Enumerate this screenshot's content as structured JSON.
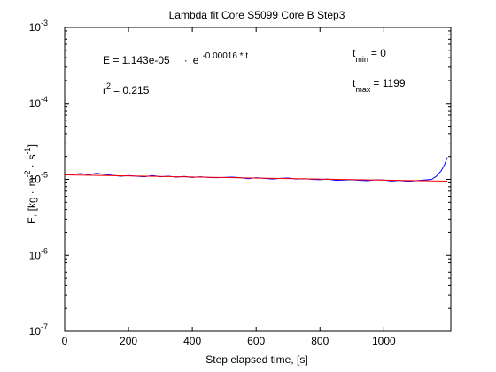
{
  "chart_data": {
    "type": "line",
    "title": "Lambda fit  Core S5099 Core B  Step3",
    "xlabel": "Step elapsed time, [s]",
    "ylabel": {
      "main": "E, [kg",
      "dot1": "·",
      "m": "m",
      "exp1": "-2",
      "dot2": "·",
      "s": "s",
      "exp2": "-1",
      "close": "]"
    },
    "x_scale": "linear",
    "y_scale": "log",
    "xlim": [
      0,
      1210
    ],
    "ylim": [
      1e-07,
      0.001
    ],
    "x_ticks": [
      {
        "value": 0,
        "label": "0"
      },
      {
        "value": 200,
        "label": "200"
      },
      {
        "value": 400,
        "label": "400"
      },
      {
        "value": 600,
        "label": "600"
      },
      {
        "value": 800,
        "label": "800"
      },
      {
        "value": 1000,
        "label": "1000"
      }
    ],
    "y_ticks": [
      {
        "value": 1e-07,
        "base": "10",
        "exp": "-7"
      },
      {
        "value": 1e-06,
        "base": "10",
        "exp": "-6"
      },
      {
        "value": 1e-05,
        "base": "10",
        "exp": "-5"
      },
      {
        "value": 0.0001,
        "base": "10",
        "exp": "-4"
      },
      {
        "value": 0.001,
        "base": "10",
        "exp": "-3"
      }
    ],
    "grid": false,
    "legend": "none",
    "annotations": {
      "equation_lhs": "E = 1.143e-05",
      "equation_dot": "·",
      "equation_e": "e",
      "equation_exp": "-0.00016 * t",
      "r2_label": "r",
      "r2_exp": "2",
      "r2_value": "= 0.215",
      "tmin_t": "t",
      "tmin_sub": "min",
      "tmin_value": "= 0",
      "tmax_t": "t",
      "tmax_sub": "max",
      "tmax_value": "= 1199"
    },
    "series": [
      {
        "style": "measured",
        "color": "#0000ff",
        "x": [
          0,
          25,
          50,
          75,
          100,
          125,
          150,
          175,
          200,
          225,
          250,
          275,
          300,
          325,
          350,
          375,
          400,
          425,
          450,
          475,
          500,
          525,
          550,
          575,
          600,
          625,
          650,
          675,
          700,
          725,
          750,
          775,
          800,
          825,
          850,
          875,
          900,
          925,
          950,
          975,
          1000,
          1025,
          1050,
          1075,
          1100,
          1125,
          1150,
          1165,
          1180,
          1190,
          1199
        ],
        "y": [
          1.17e-05,
          1.16e-05,
          1.19e-05,
          1.15e-05,
          1.2e-05,
          1.16e-05,
          1.13e-05,
          1.1e-05,
          1.12e-05,
          1.1e-05,
          1.08e-05,
          1.12e-05,
          1.08e-05,
          1.1e-05,
          1.07e-05,
          1.09e-05,
          1.06e-05,
          1.08e-05,
          1.06e-05,
          1.05e-05,
          1.06e-05,
          1.07e-05,
          1.05e-05,
          1.02e-05,
          1.05e-05,
          1.03e-05,
          1.01e-05,
          1.03e-05,
          1.04e-05,
          1.01e-05,
          1.02e-05,
          1e-05,
          9.9e-06,
          1.01e-05,
          9.7e-06,
          9.8e-06,
          9.9e-06,
          9.7e-06,
          9.6e-06,
          9.9e-06,
          9.8e-06,
          9.5e-06,
          9.7e-06,
          9.4e-06,
          9.6e-06,
          9.8e-06,
          1e-05,
          1.1e-05,
          1.3e-05,
          1.55e-05,
          1.95e-05
        ]
      },
      {
        "style": "fit",
        "color": "#ff0000",
        "x": [
          0,
          1199
        ],
        "y": [
          1.143e-05,
          9.47e-06
        ]
      }
    ]
  }
}
